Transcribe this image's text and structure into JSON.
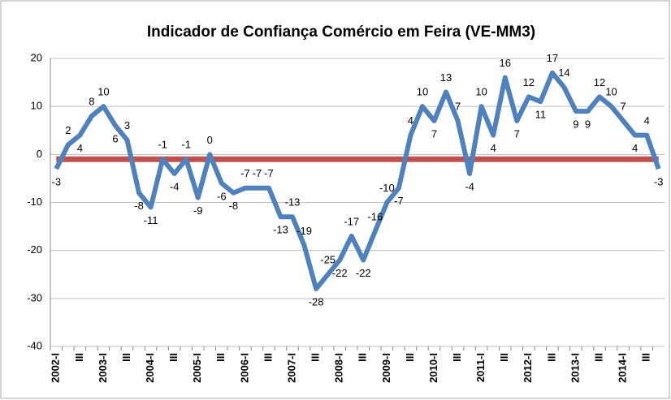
{
  "chart_data": {
    "type": "line",
    "title": "Indicador de Confiança Comércio em Feira (VE-MM3)",
    "categories": [
      "2002-I",
      null,
      "III",
      null,
      "2003-I",
      null,
      "III",
      null,
      "2004-I",
      null,
      "III",
      null,
      "2005-I",
      null,
      "III",
      null,
      "2006-I",
      null,
      "III",
      null,
      "2007-I",
      null,
      "III",
      null,
      "2008-I",
      null,
      "III",
      null,
      "2009-I",
      null,
      "III",
      null,
      "2010-I",
      null,
      "III",
      null,
      "2011-I",
      null,
      "III",
      null,
      "2012-I",
      null,
      "III",
      null,
      "2013-I",
      null,
      "III",
      null,
      "2014-I",
      null,
      "III",
      null
    ],
    "series": [
      {
        "color": "#4f81bd",
        "values": [
          -3,
          2,
          4,
          8,
          10,
          6,
          3,
          -8,
          -11,
          -1,
          -4,
          -1,
          -9,
          0,
          -6,
          -8,
          -7,
          -7,
          -7,
          -13,
          -13,
          -19,
          -28,
          -25,
          -22,
          -17,
          -22,
          -16,
          -10,
          -7,
          4,
          10,
          7,
          13,
          7,
          -4,
          10,
          4,
          16,
          7,
          12,
          11,
          17,
          14,
          9,
          9,
          12,
          10,
          7,
          4,
          4,
          -3
        ],
        "data_labels": true
      },
      {
        "color": "#c0504d",
        "values": [
          -1,
          -1,
          -1,
          -1,
          -1,
          -1,
          -1,
          -1,
          -1,
          -1,
          -1,
          -1,
          -1,
          -1,
          -1,
          -1,
          -1,
          -1,
          -1,
          -1,
          -1,
          -1,
          -1,
          -1,
          -1,
          -1,
          -1,
          -1,
          -1,
          -1,
          -1,
          -1,
          -1,
          -1,
          -1,
          -1,
          -1,
          -1,
          -1,
          -1,
          -1,
          -1,
          -1,
          -1,
          -1,
          -1,
          -1,
          -1,
          -1,
          -1,
          -1,
          -1
        ]
      }
    ],
    "ylim": [
      -40,
      20
    ],
    "yticks": [
      -40,
      -30,
      -20,
      -10,
      0,
      10,
      20
    ],
    "grid": true
  }
}
